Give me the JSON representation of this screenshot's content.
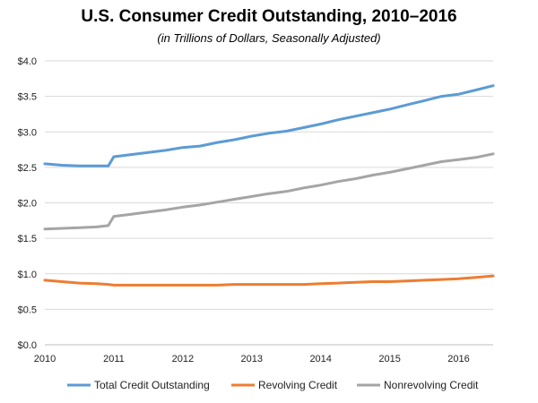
{
  "chart_data": {
    "type": "line",
    "title": "U.S. Consumer Credit Outstanding, 2010–2016",
    "subtitle": "(in Trillions of Dollars, Seasonally Adjusted)",
    "xlabel": "",
    "ylabel": "",
    "xlim": [
      2010,
      2016.5
    ],
    "ylim": [
      0,
      4
    ],
    "grid": true,
    "legend_position": "bottom",
    "x_tick_labels": [
      "2010",
      "2011",
      "2012",
      "2013",
      "2014",
      "2015",
      "2016"
    ],
    "y_tick_labels": [
      "$0.0",
      "$0.5",
      "$1.0",
      "$1.5",
      "$2.0",
      "$2.5",
      "$3.0",
      "$3.5",
      "$4.0"
    ],
    "x": [
      2010.0,
      2010.25,
      2010.5,
      2010.75,
      2010.92,
      2011.0,
      2011.25,
      2011.5,
      2011.75,
      2012.0,
      2012.25,
      2012.5,
      2012.75,
      2013.0,
      2013.25,
      2013.5,
      2013.75,
      2014.0,
      2014.25,
      2014.5,
      2014.75,
      2015.0,
      2015.25,
      2015.5,
      2015.75,
      2016.0,
      2016.25,
      2016.5
    ],
    "series": [
      {
        "name": "Total Credit Outstanding",
        "color": "#5b9bd5",
        "values": [
          2.55,
          2.53,
          2.52,
          2.52,
          2.52,
          2.65,
          2.68,
          2.71,
          2.74,
          2.78,
          2.8,
          2.85,
          2.89,
          2.94,
          2.98,
          3.01,
          3.06,
          3.11,
          3.17,
          3.22,
          3.27,
          3.32,
          3.38,
          3.44,
          3.5,
          3.53,
          3.59,
          3.65
        ]
      },
      {
        "name": "Revolving Credit",
        "color": "#ed7d31",
        "values": [
          0.91,
          0.89,
          0.87,
          0.86,
          0.85,
          0.84,
          0.84,
          0.84,
          0.84,
          0.84,
          0.84,
          0.84,
          0.85,
          0.85,
          0.85,
          0.85,
          0.85,
          0.86,
          0.87,
          0.88,
          0.89,
          0.89,
          0.9,
          0.91,
          0.92,
          0.93,
          0.95,
          0.97
        ]
      },
      {
        "name": "Nonrevolving Credit",
        "color": "#a5a5a5",
        "values": [
          1.63,
          1.64,
          1.65,
          1.66,
          1.68,
          1.81,
          1.84,
          1.87,
          1.9,
          1.94,
          1.97,
          2.01,
          2.05,
          2.09,
          2.13,
          2.16,
          2.21,
          2.25,
          2.3,
          2.34,
          2.39,
          2.43,
          2.48,
          2.53,
          2.58,
          2.61,
          2.64,
          2.69
        ]
      }
    ]
  }
}
